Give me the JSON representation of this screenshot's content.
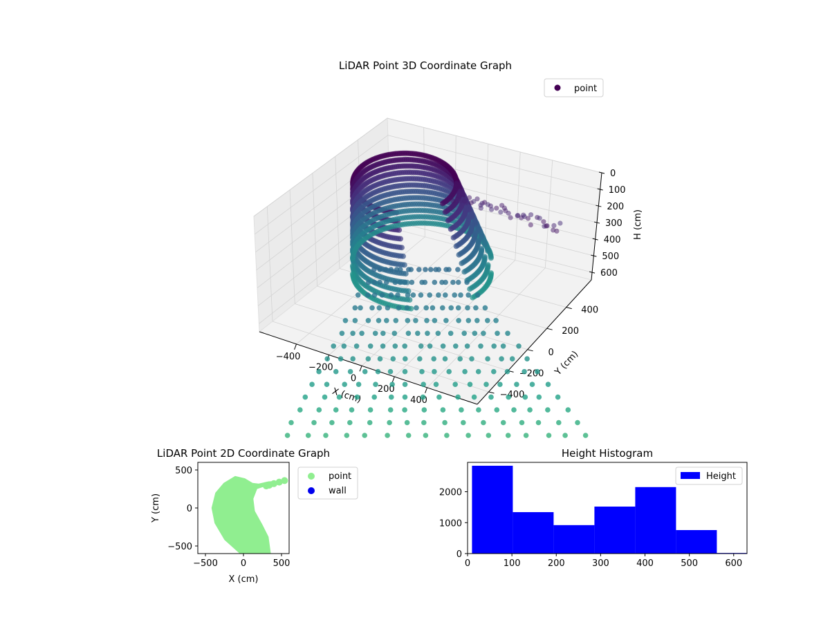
{
  "chart_data": [
    {
      "type": "scatter",
      "subtype": "3d-scatter",
      "title": "LiDAR Point 3D Coordinate Graph",
      "xlabel": "X (cm)",
      "ylabel": "Y (cm)",
      "zlabel": "H (cm)",
      "x_ticks": [
        "−400",
        "−200",
        "0",
        "200",
        "400"
      ],
      "y_ticks": [
        "−400",
        "−200",
        "0",
        "200",
        "400"
      ],
      "z_ticks": [
        "0",
        "100",
        "200",
        "300",
        "400",
        "500",
        "600"
      ],
      "z_inverted": true,
      "grid": true,
      "legend": {
        "position": "top-right",
        "entries": [
          {
            "label": "point",
            "color": "#440154"
          }
        ]
      },
      "colormap": "viridis",
      "series": [
        {
          "name": "point",
          "color": "#440154"
        }
      ]
    },
    {
      "type": "scatter",
      "title": "LiDAR Point 2D Coordinate Graph",
      "xlabel": "X (cm)",
      "ylabel": "Y (cm)",
      "xlim": [
        -600,
        600
      ],
      "ylim": [
        -600,
        600
      ],
      "x_ticks": [
        "−500",
        "0",
        "500"
      ],
      "y_ticks": [
        "−500",
        "0",
        "500"
      ],
      "legend": {
        "position": "outside-right",
        "entries": [
          {
            "label": "point",
            "color": "#90ee90"
          },
          {
            "label": "wall",
            "color": "#0000ee"
          }
        ]
      },
      "series": [
        {
          "name": "point",
          "color": "#90ee90"
        },
        {
          "name": "wall",
          "color": "#0000ee"
        }
      ]
    },
    {
      "type": "bar",
      "subtype": "histogram",
      "title": "Height Histogram",
      "xlim": [
        0,
        630
      ],
      "ylim": [
        0,
        2950
      ],
      "x_ticks": [
        "0",
        "100",
        "200",
        "300",
        "400",
        "500",
        "600"
      ],
      "x_tick_values": [
        0,
        100,
        200,
        300,
        400,
        500,
        600
      ],
      "y_ticks": [
        "0",
        "1000",
        "2000"
      ],
      "y_tick_values": [
        0,
        1000,
        2000
      ],
      "bins": [
        {
          "start": 10,
          "end": 102,
          "count": 2840
        },
        {
          "start": 102,
          "end": 194,
          "count": 1340
        },
        {
          "start": 194,
          "end": 286,
          "count": 920
        },
        {
          "start": 286,
          "end": 378,
          "count": 1520
        },
        {
          "start": 378,
          "end": 470,
          "count": 2150
        },
        {
          "start": 470,
          "end": 562,
          "count": 760
        },
        {
          "start": 562,
          "end": 654,
          "count": 20
        }
      ],
      "color": "#0000ff",
      "legend": {
        "position": "top-right",
        "entries": [
          {
            "label": "Height",
            "color": "#0000ff"
          }
        ]
      },
      "series": [
        {
          "name": "Height",
          "color": "#0000ff"
        }
      ]
    }
  ]
}
